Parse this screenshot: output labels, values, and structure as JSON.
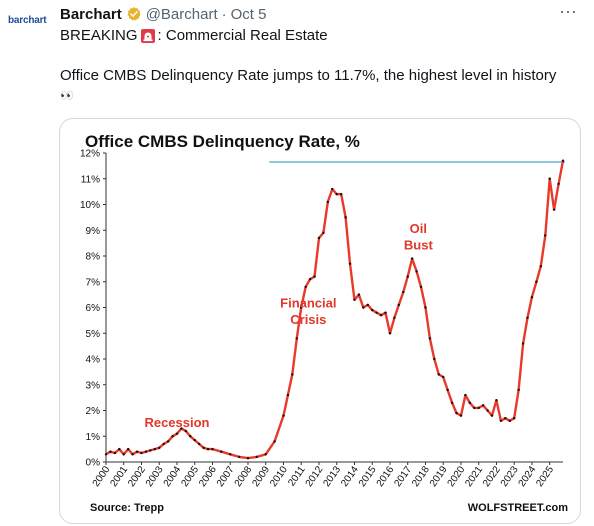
{
  "tweet": {
    "author_name": "Barchart",
    "handle": "@Barchart",
    "separator": "·",
    "date": "Oct 5",
    "avatar_text": "barchart",
    "more_label": "···",
    "breaking_prefix": "BREAKING",
    "breaking_suffix": ": Commercial Real Estate",
    "body": "Office CMBS Delinquency Rate jumps to 11.7%, the highest level in history",
    "eyes_emoji": "👀",
    "icons": [
      "verified-badge-icon",
      "siren-icon",
      "more-icon",
      "eyes-icon"
    ]
  },
  "chart_data": {
    "type": "line",
    "title": "Office CMBS Delinquency Rate, %",
    "source": "Source: Trepp",
    "credit": "WOLFSTREET.com",
    "xlim": [
      2000,
      2025.75
    ],
    "ylim": [
      0,
      12
    ],
    "y_ticks": [
      "0%",
      "1%",
      "2%",
      "3%",
      "4%",
      "5%",
      "6%",
      "7%",
      "8%",
      "9%",
      "10%",
      "11%",
      "12%"
    ],
    "x_ticks": [
      "2000",
      "2001",
      "2002",
      "2003",
      "2004",
      "2005",
      "2006",
      "2007",
      "2008",
      "2009",
      "2010",
      "2011",
      "2012",
      "2013",
      "2014",
      "2015",
      "2016",
      "2017",
      "2018",
      "2019",
      "2020",
      "2021",
      "2022",
      "2023",
      "2024",
      "2025"
    ],
    "reference_line": {
      "value": 11.65,
      "from": 2009.2,
      "color": "#6ab4d9"
    },
    "series": [
      {
        "color": "#e8392b",
        "x": [
          2000,
          2000.25,
          2000.5,
          2000.75,
          2001,
          2001.25,
          2001.5,
          2001.75,
          2002,
          2002.25,
          2002.5,
          2002.75,
          2003,
          2003.25,
          2003.5,
          2003.75,
          2004,
          2004.25,
          2004.5,
          2004.75,
          2005,
          2005.25,
          2005.5,
          2005.75,
          2006,
          2006.5,
          2007,
          2007.5,
          2008,
          2008.5,
          2009,
          2009.5,
          2010,
          2010.25,
          2010.5,
          2010.75,
          2011,
          2011.25,
          2011.5,
          2011.75,
          2012,
          2012.25,
          2012.5,
          2012.75,
          2013,
          2013.25,
          2013.5,
          2013.75,
          2014,
          2014.25,
          2014.5,
          2014.75,
          2015,
          2015.25,
          2015.5,
          2015.75,
          2016,
          2016.25,
          2016.5,
          2016.75,
          2017,
          2017.25,
          2017.5,
          2017.75,
          2018,
          2018.25,
          2018.5,
          2018.75,
          2019,
          2019.25,
          2019.5,
          2019.75,
          2020,
          2020.25,
          2020.5,
          2020.75,
          2021,
          2021.25,
          2021.5,
          2021.75,
          2022,
          2022.25,
          2022.5,
          2022.75,
          2023,
          2023.25,
          2023.5,
          2023.75,
          2024,
          2024.25,
          2024.5,
          2024.75,
          2025,
          2025.25,
          2025.5,
          2025.75
        ],
        "y": [
          0.3,
          0.4,
          0.35,
          0.5,
          0.3,
          0.5,
          0.3,
          0.4,
          0.35,
          0.4,
          0.45,
          0.5,
          0.55,
          0.7,
          0.8,
          1.0,
          1.1,
          1.3,
          1.2,
          1.0,
          0.85,
          0.7,
          0.55,
          0.5,
          0.5,
          0.4,
          0.3,
          0.2,
          0.15,
          0.2,
          0.3,
          0.8,
          1.8,
          2.6,
          3.4,
          4.8,
          6.0,
          6.8,
          7.1,
          7.2,
          8.7,
          8.9,
          10.1,
          10.6,
          10.4,
          10.4,
          9.5,
          7.7,
          6.3,
          6.5,
          6.0,
          6.1,
          5.9,
          5.8,
          5.7,
          5.8,
          5.0,
          5.6,
          6.1,
          6.6,
          7.2,
          7.9,
          7.4,
          6.8,
          6.0,
          4.8,
          4.0,
          3.4,
          3.3,
          2.8,
          2.3,
          1.9,
          1.8,
          2.6,
          2.3,
          2.1,
          2.1,
          2.2,
          2.0,
          1.8,
          2.4,
          1.6,
          1.7,
          1.6,
          1.7,
          2.8,
          4.6,
          5.6,
          6.4,
          7.0,
          7.6,
          8.8,
          11.0,
          9.8,
          10.8,
          11.7
        ]
      }
    ],
    "annotations": [
      {
        "text": "Recession",
        "x": 2004.0,
        "y": 1.35
      },
      {
        "text": "Financial",
        "x": 2011.4,
        "y": 6.0
      },
      {
        "text": "Crisis",
        "x": 2011.4,
        "y": 5.35
      },
      {
        "text": "Oil",
        "x": 2017.6,
        "y": 8.9
      },
      {
        "text": "Bust",
        "x": 2017.6,
        "y": 8.25
      }
    ],
    "grid": false
  }
}
